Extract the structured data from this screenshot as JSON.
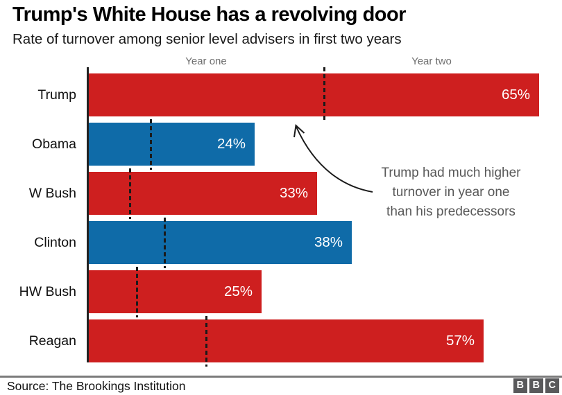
{
  "header": {
    "title": "Trump's White House has a revolving door",
    "subtitle": "Rate of turnover among senior level advisers in first two years"
  },
  "chart_data": {
    "type": "bar",
    "orientation": "horizontal",
    "title": "Trump's White House has a revolving door",
    "subtitle": "Rate of turnover among senior level advisers in first two years",
    "categories": [
      "Trump",
      "Obama",
      "W Bush",
      "Clinton",
      "HW Bush",
      "Reagan"
    ],
    "series": [
      {
        "name": "Turnover after two years (bar length)",
        "values": [
          65,
          24,
          33,
          38,
          25,
          57
        ],
        "labels": [
          "65%",
          "24%",
          "33%",
          "38%",
          "25%",
          "57%"
        ]
      },
      {
        "name": "Turnover after year one (dashed marker)",
        "values": [
          34,
          9,
          6,
          11,
          7,
          17
        ]
      }
    ],
    "bar_colors": [
      "#CE1F1F",
      "#0F6BA8",
      "#CE1F1F",
      "#0F6BA8",
      "#CE1F1F",
      "#CE1F1F"
    ],
    "xlim": [
      0,
      67
    ],
    "grid": false,
    "legend": false,
    "region_labels": {
      "year_one": "Year one",
      "year_two": "Year two"
    },
    "annotation": {
      "text": "Trump had much higher turnover in year one than his predecessors",
      "lines": [
        "Trump had much higher",
        "turnover in year one",
        "than his predecessors"
      ]
    }
  },
  "footer": {
    "source": "Source: The Brookings Institution",
    "logo_letters": [
      "B",
      "B",
      "C"
    ]
  },
  "colors": {
    "red": "#CE1F1F",
    "blue": "#0F6BA8",
    "axis": "#222222",
    "dash": "#1a1a1a",
    "year_label_text": "#6e6e6e",
    "annotation_text": "#585858",
    "divider": "#7b7b7b",
    "logo_background": "#59595b"
  }
}
